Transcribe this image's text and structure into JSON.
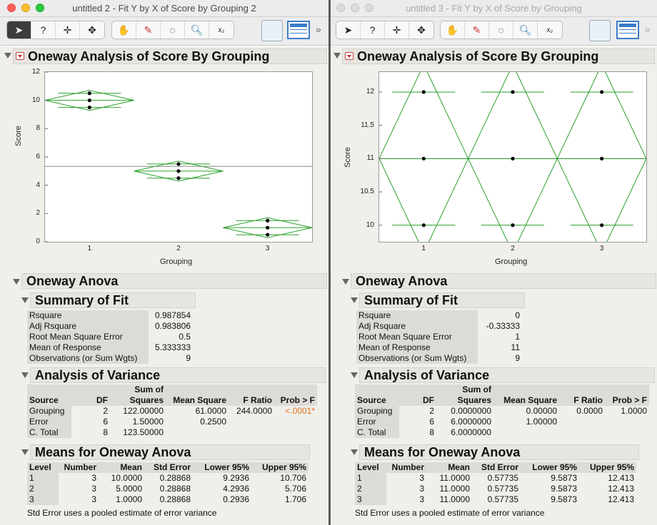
{
  "left": {
    "window_title": "untitled 2 - Fit Y by X of Score by Grouping 2",
    "report_title": "Oneway Analysis of Score By Grouping",
    "chart_data": {
      "type": "scatter",
      "title": "",
      "xlabel": "Grouping",
      "ylabel": "Score",
      "categories": [
        "1",
        "2",
        "3"
      ],
      "ylim": [
        0,
        12
      ],
      "y_ticks": [
        "0",
        "2",
        "4",
        "6",
        "8",
        "10",
        "12"
      ],
      "points": [
        [
          1,
          9.5
        ],
        [
          1,
          10
        ],
        [
          1,
          10.5
        ],
        [
          2,
          4.5
        ],
        [
          2,
          5
        ],
        [
          2,
          5.5
        ],
        [
          3,
          0.5
        ],
        [
          3,
          1
        ],
        [
          3,
          1.5
        ]
      ],
      "grand_mean": 5.333333,
      "means": [
        10,
        5,
        1
      ],
      "lower95": [
        9.2936,
        4.2936,
        0.2936
      ],
      "upper95": [
        10.706,
        5.706,
        1.706
      ]
    },
    "anova_title": "Oneway Anova",
    "fit_title": "Summary of Fit",
    "fit_rows": [
      {
        "label": "Rsquare",
        "value": "0.987854"
      },
      {
        "label": "Adj Rsquare",
        "value": "0.983806"
      },
      {
        "label": "Root Mean Square Error",
        "value": "0.5"
      },
      {
        "label": "Mean of Response",
        "value": "5.333333"
      },
      {
        "label": "Observations (or Sum Wgts)",
        "value": "9"
      }
    ],
    "aov_title": "Analysis of Variance",
    "aov_headers": {
      "source": "Source",
      "df": "DF",
      "ss_top": "Sum of",
      "ss_bottom": "Squares",
      "ms": "Mean Square",
      "f": "F Ratio",
      "p": "Prob > F"
    },
    "aov_rows": [
      {
        "source": "Grouping",
        "df": "2",
        "ss": "122.00000",
        "ms": "61.0000",
        "f": "244.0000",
        "p": "<.0001*"
      },
      {
        "source": "Error",
        "df": "6",
        "ss": "1.50000",
        "ms": "0.2500",
        "f": "",
        "p": ""
      },
      {
        "source": "C. Total",
        "df": "8",
        "ss": "123.50000",
        "ms": "",
        "f": "",
        "p": ""
      }
    ],
    "means_title": "Means for Oneway Anova",
    "means_headers": {
      "level": "Level",
      "number": "Number",
      "mean": "Mean",
      "se": "Std Error",
      "lower": "Lower 95%",
      "upper": "Upper 95%"
    },
    "means_rows": [
      {
        "level": "1",
        "number": "3",
        "mean": "10.0000",
        "se": "0.28868",
        "lower": "9.2936",
        "upper": "10.706"
      },
      {
        "level": "2",
        "number": "3",
        "mean": "5.0000",
        "se": "0.28868",
        "lower": "4.2936",
        "upper": "5.706"
      },
      {
        "level": "3",
        "number": "3",
        "mean": "1.0000",
        "se": "0.28868",
        "lower": "0.2936",
        "upper": "1.706"
      }
    ],
    "footnote": "Std Error uses a pooled estimate of error variance"
  },
  "right": {
    "window_title": "untitled 3 - Fit Y by X of Score by Grouping",
    "report_title": "Oneway Analysis of Score By Grouping",
    "chart_data": {
      "type": "scatter",
      "title": "",
      "xlabel": "Grouping",
      "ylabel": "Score",
      "categories": [
        "1",
        "2",
        "3"
      ],
      "ylim": [
        9.75,
        12.3
      ],
      "y_ticks": [
        "10",
        "10.5",
        "11",
        "11.5",
        "12"
      ],
      "points": [
        [
          1,
          10
        ],
        [
          1,
          11
        ],
        [
          1,
          12
        ],
        [
          2,
          10
        ],
        [
          2,
          11
        ],
        [
          2,
          12
        ],
        [
          3,
          10
        ],
        [
          3,
          11
        ],
        [
          3,
          12
        ]
      ],
      "grand_mean": 11,
      "means": [
        11,
        11,
        11
      ],
      "lower95": [
        9.5873,
        9.5873,
        9.5873
      ],
      "upper95": [
        12.413,
        12.413,
        12.413
      ]
    },
    "anova_title": "Oneway Anova",
    "fit_title": "Summary of Fit",
    "fit_rows": [
      {
        "label": "Rsquare",
        "value": "0"
      },
      {
        "label": "Adj Rsquare",
        "value": "-0.33333"
      },
      {
        "label": "Root Mean Square Error",
        "value": "1"
      },
      {
        "label": "Mean of Response",
        "value": "11"
      },
      {
        "label": "Observations (or Sum Wgts)",
        "value": "9"
      }
    ],
    "aov_title": "Analysis of Variance",
    "aov_headers": {
      "source": "Source",
      "df": "DF",
      "ss_top": "Sum of",
      "ss_bottom": "Squares",
      "ms": "Mean Square",
      "f": "F Ratio",
      "p": "Prob > F"
    },
    "aov_rows": [
      {
        "source": "Grouping",
        "df": "2",
        "ss": "0.0000000",
        "ms": "0.00000",
        "f": "0.0000",
        "p": "1.0000"
      },
      {
        "source": "Error",
        "df": "6",
        "ss": "6.0000000",
        "ms": "1.00000",
        "f": "",
        "p": ""
      },
      {
        "source": "C. Total",
        "df": "8",
        "ss": "6.0000000",
        "ms": "",
        "f": "",
        "p": ""
      }
    ],
    "means_title": "Means for Oneway Anova",
    "means_headers": {
      "level": "Level",
      "number": "Number",
      "mean": "Mean",
      "se": "Std Error",
      "lower": "Lower 95%",
      "upper": "Upper 95%"
    },
    "means_rows": [
      {
        "level": "1",
        "number": "3",
        "mean": "11.0000",
        "se": "0.57735",
        "lower": "9.5873",
        "upper": "12.413"
      },
      {
        "level": "2",
        "number": "3",
        "mean": "11.0000",
        "se": "0.57735",
        "lower": "9.5873",
        "upper": "12.413"
      },
      {
        "level": "3",
        "number": "3",
        "mean": "11.0000",
        "se": "0.57735",
        "lower": "9.5873",
        "upper": "12.413"
      }
    ],
    "footnote": "Std Error uses a pooled estimate of error variance"
  },
  "toolbar_icons": [
    "arrow-icon",
    "help-icon",
    "crosshair-icon",
    "move-icon",
    "hand-icon",
    "brush-icon",
    "lasso-icon",
    "magnifier-icon",
    "annotate-icon",
    "jmp-home-icon",
    "data-table-icon",
    "more-icon"
  ],
  "colors": {
    "diamond": "#2ca02c",
    "points": "#000000",
    "mean_line": "#888888",
    "prob_highlight": "#e07020"
  }
}
